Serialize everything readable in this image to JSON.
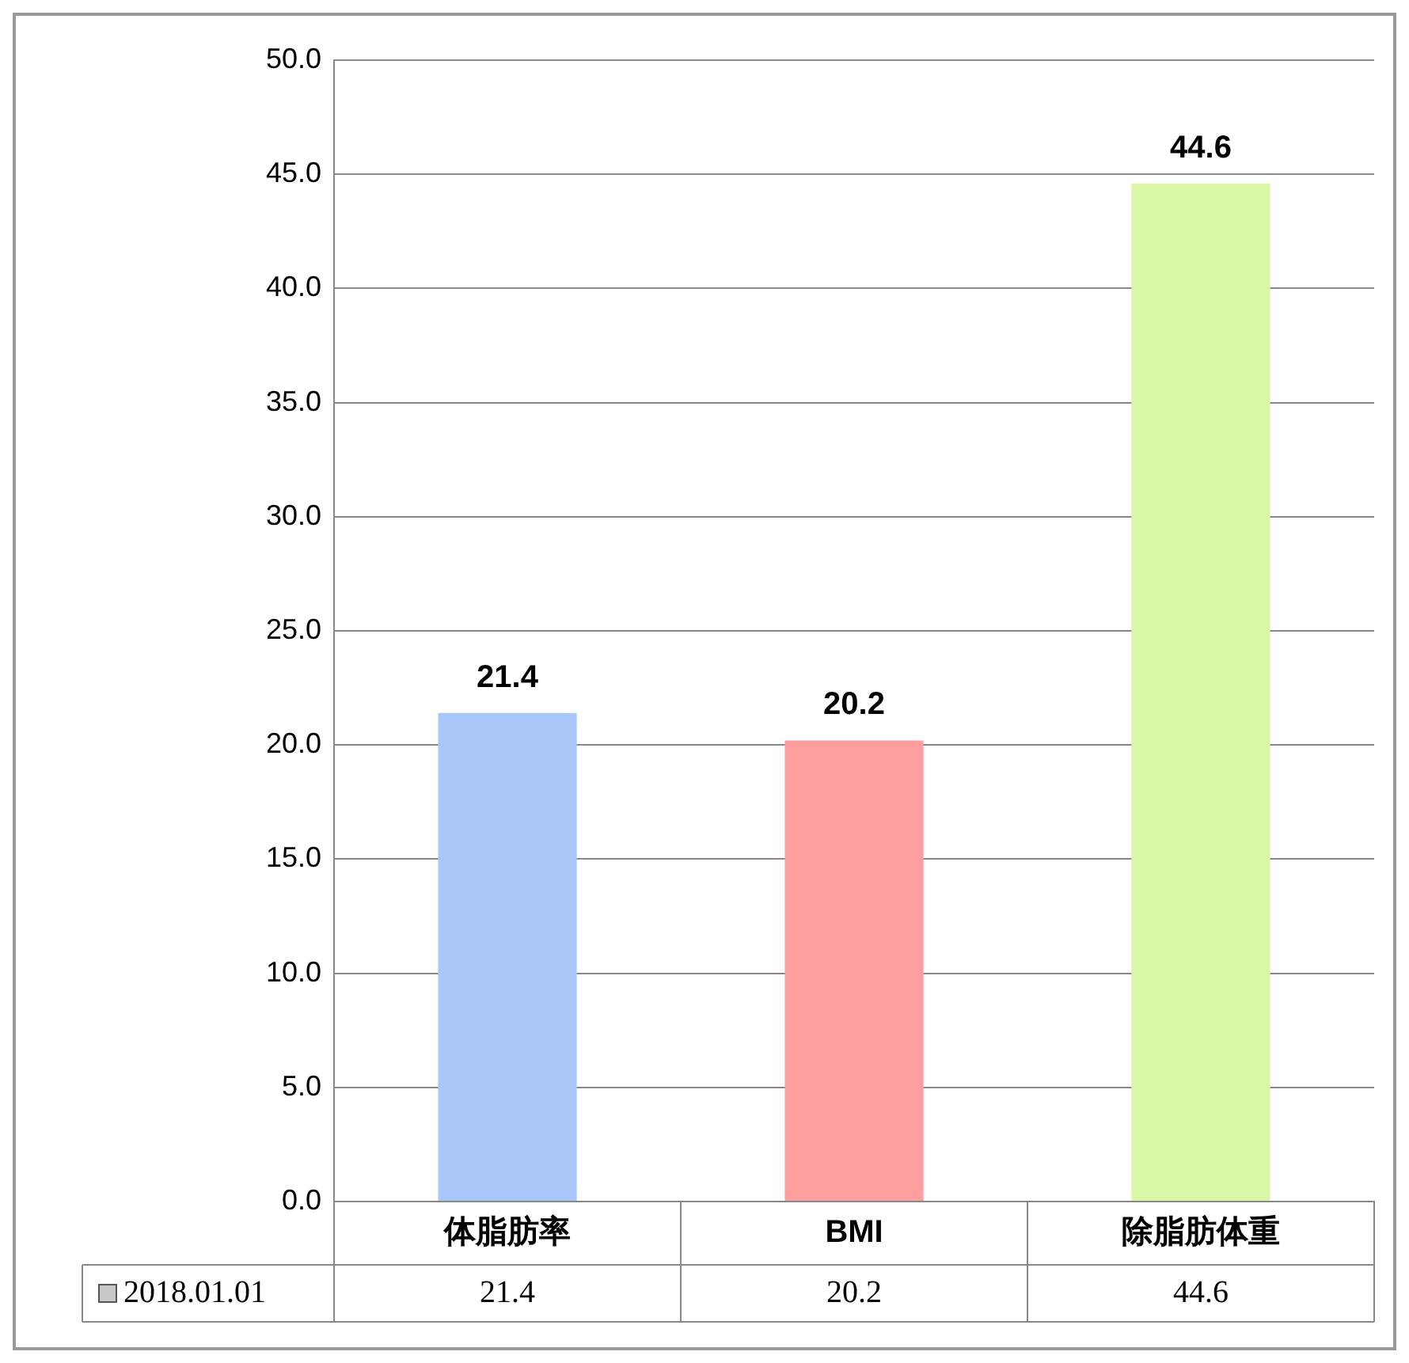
{
  "chart_data": {
    "type": "bar",
    "categories": [
      "体脂肪率",
      "BMI",
      "除脂肪体重"
    ],
    "series": [
      {
        "name": "2018.01.01",
        "colors": [
          "#a9c7f9",
          "#ff9e9e",
          "#d9f7a6"
        ],
        "values": [
          21.4,
          20.2,
          44.6
        ],
        "value_labels": [
          "21.4",
          "20.2",
          "44.6"
        ]
      }
    ],
    "ylim": [
      0,
      50
    ],
    "yticks": [
      {
        "value": 0,
        "label": "0.0"
      },
      {
        "value": 5,
        "label": "5.0"
      },
      {
        "value": 10,
        "label": "10.0"
      },
      {
        "value": 15,
        "label": "15.0"
      },
      {
        "value": 20,
        "label": "20.0"
      },
      {
        "value": 25,
        "label": "25.0"
      },
      {
        "value": 30,
        "label": "30.0"
      },
      {
        "value": 35,
        "label": "35.0"
      },
      {
        "value": 40,
        "label": "40.0"
      },
      {
        "value": 45,
        "label": "45.0"
      },
      {
        "value": 50,
        "label": "50.0"
      }
    ],
    "grid": "y",
    "legend": "bottom",
    "annotations": [
      "21.4",
      "20.2",
      "44.6"
    ]
  }
}
